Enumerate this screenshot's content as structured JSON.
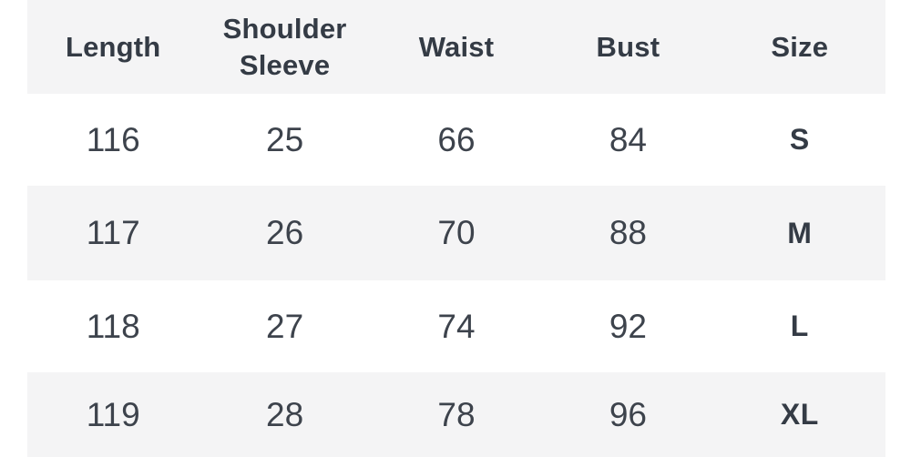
{
  "chart_data": {
    "type": "table",
    "columns": [
      "Length",
      "Shoulder\nSleeve",
      "Waist",
      "Bust",
      "Size"
    ],
    "rows": [
      [
        "116",
        "25",
        "66",
        "84",
        "S"
      ],
      [
        "117",
        "26",
        "70",
        "88",
        "M"
      ],
      [
        "118",
        "27",
        "74",
        "92",
        "L"
      ],
      [
        "119",
        "28",
        "78",
        "96",
        "XL"
      ]
    ]
  },
  "style": {
    "stripe_color": "#f4f4f5",
    "page_background": "#ffffff",
    "header_text_color": "#343b45",
    "body_text_color": "#3d434c"
  }
}
